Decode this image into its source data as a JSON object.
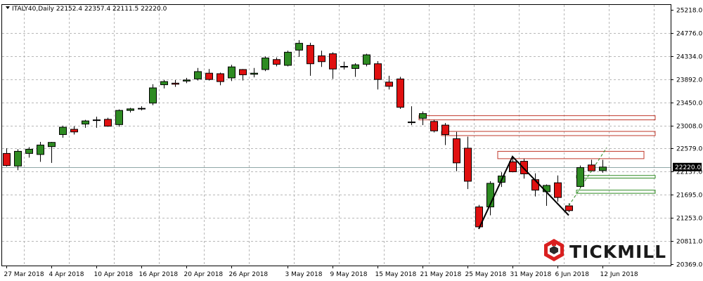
{
  "chart_data": {
    "type": "candlestick",
    "title": "ITALY40,Daily  22152.4 22357.4 22111.5 22220.0",
    "symbol": "ITALY40",
    "timeframe": "Daily",
    "ohlc_readout": {
      "open": "22152.4",
      "high": "22357.4",
      "low": "22111.5",
      "close": "22220.0"
    },
    "current_price": 22220.0,
    "current_price_label": "22220.0",
    "ylim": [
      20369.0,
      25218.0
    ],
    "y_ticks": [
      "25218.0",
      "24776.0",
      "24334.0",
      "23892.0",
      "23450.0",
      "23008.0",
      "22579.0",
      "22137.0",
      "21695.0",
      "21253.0",
      "20811.0",
      "20369.0"
    ],
    "x_ticks": [
      {
        "label": "27 Mar 2018",
        "index": 0
      },
      {
        "label": "4 Apr 2018",
        "index": 4
      },
      {
        "label": "10 Apr 2018",
        "index": 8
      },
      {
        "label": "16 Apr 2018",
        "index": 12
      },
      {
        "label": "20 Apr 2018",
        "index": 16
      },
      {
        "label": "26 Apr 2018",
        "index": 20
      },
      {
        "label": "3 May 2018",
        "index": 25
      },
      {
        "label": "9 May 2018",
        "index": 29
      },
      {
        "label": "15 May 2018",
        "index": 33
      },
      {
        "label": "21 May 2018",
        "index": 37
      },
      {
        "label": "25 May 2018",
        "index": 41
      },
      {
        "label": "31 May 2018",
        "index": 45
      },
      {
        "label": "6 Jun 2018",
        "index": 49
      },
      {
        "label": "12 Jun 2018",
        "index": 53
      }
    ],
    "up_color": "#2e8b22",
    "down_color": "#e01010",
    "candles": [
      {
        "o": 22480,
        "h": 22580,
        "l": 22230,
        "c": 22250
      },
      {
        "o": 22240,
        "h": 22560,
        "l": 22160,
        "c": 22520
      },
      {
        "o": 22480,
        "h": 22600,
        "l": 22400,
        "c": 22560
      },
      {
        "o": 22460,
        "h": 22700,
        "l": 22320,
        "c": 22640
      },
      {
        "o": 22610,
        "h": 22700,
        "l": 22300,
        "c": 22690
      },
      {
        "o": 22840,
        "h": 23010,
        "l": 22780,
        "c": 22980
      },
      {
        "o": 22940,
        "h": 23000,
        "l": 22840,
        "c": 22890
      },
      {
        "o": 23040,
        "h": 23120,
        "l": 22970,
        "c": 23100
      },
      {
        "o": 23120,
        "h": 23180,
        "l": 22970,
        "c": 23120
      },
      {
        "o": 23130,
        "h": 23160,
        "l": 22990,
        "c": 23000
      },
      {
        "o": 23030,
        "h": 23320,
        "l": 22990,
        "c": 23300
      },
      {
        "o": 23300,
        "h": 23350,
        "l": 23260,
        "c": 23330
      },
      {
        "o": 23330,
        "h": 23380,
        "l": 23300,
        "c": 23340
      },
      {
        "o": 23440,
        "h": 23800,
        "l": 23400,
        "c": 23730
      },
      {
        "o": 23790,
        "h": 23880,
        "l": 23720,
        "c": 23850
      },
      {
        "o": 23820,
        "h": 23880,
        "l": 23750,
        "c": 23800
      },
      {
        "o": 23860,
        "h": 23920,
        "l": 23820,
        "c": 23880
      },
      {
        "o": 23900,
        "h": 24110,
        "l": 23870,
        "c": 24040
      },
      {
        "o": 24010,
        "h": 24090,
        "l": 23870,
        "c": 23890
      },
      {
        "o": 24000,
        "h": 24020,
        "l": 23780,
        "c": 23850
      },
      {
        "o": 23920,
        "h": 24170,
        "l": 23860,
        "c": 24130
      },
      {
        "o": 24080,
        "h": 24090,
        "l": 23870,
        "c": 23980
      },
      {
        "o": 23990,
        "h": 24110,
        "l": 23930,
        "c": 24010
      },
      {
        "o": 24080,
        "h": 24330,
        "l": 24050,
        "c": 24300
      },
      {
        "o": 24270,
        "h": 24310,
        "l": 24140,
        "c": 24180
      },
      {
        "o": 24160,
        "h": 24440,
        "l": 24140,
        "c": 24410
      },
      {
        "o": 24450,
        "h": 24640,
        "l": 24320,
        "c": 24580
      },
      {
        "o": 24540,
        "h": 24590,
        "l": 23960,
        "c": 24190
      },
      {
        "o": 24340,
        "h": 24440,
        "l": 24130,
        "c": 24230
      },
      {
        "o": 24380,
        "h": 24410,
        "l": 23900,
        "c": 24090
      },
      {
        "o": 24140,
        "h": 24230,
        "l": 24080,
        "c": 24140
      },
      {
        "o": 24100,
        "h": 24200,
        "l": 23940,
        "c": 24170
      },
      {
        "o": 24180,
        "h": 24380,
        "l": 24140,
        "c": 24360
      },
      {
        "o": 24190,
        "h": 24240,
        "l": 23700,
        "c": 23890
      },
      {
        "o": 23840,
        "h": 23960,
        "l": 23700,
        "c": 23760
      },
      {
        "o": 23900,
        "h": 23940,
        "l": 23330,
        "c": 23360
      },
      {
        "o": 23080,
        "h": 23380,
        "l": 23020,
        "c": 23070
      },
      {
        "o": 23150,
        "h": 23280,
        "l": 23020,
        "c": 23240
      },
      {
        "o": 23090,
        "h": 23120,
        "l": 22880,
        "c": 22910
      },
      {
        "o": 23020,
        "h": 23060,
        "l": 22640,
        "c": 22840
      },
      {
        "o": 22760,
        "h": 22890,
        "l": 22140,
        "c": 22300
      },
      {
        "o": 22580,
        "h": 22800,
        "l": 21800,
        "c": 21950
      },
      {
        "o": 21460,
        "h": 21500,
        "l": 21040,
        "c": 21080
      },
      {
        "o": 21460,
        "h": 21950,
        "l": 21300,
        "c": 21910
      },
      {
        "o": 21930,
        "h": 22120,
        "l": 21840,
        "c": 22050
      },
      {
        "o": 22320,
        "h": 22420,
        "l": 22120,
        "c": 22130
      },
      {
        "o": 22330,
        "h": 22380,
        "l": 22000,
        "c": 22090
      },
      {
        "o": 21980,
        "h": 22100,
        "l": 21660,
        "c": 21780
      },
      {
        "o": 21750,
        "h": 21890,
        "l": 21480,
        "c": 21870
      },
      {
        "o": 21920,
        "h": 22060,
        "l": 21560,
        "c": 21640
      },
      {
        "o": 21480,
        "h": 21530,
        "l": 21360,
        "c": 21390
      },
      {
        "o": 21850,
        "h": 22250,
        "l": 21830,
        "c": 22210
      },
      {
        "o": 22260,
        "h": 22360,
        "l": 22130,
        "c": 22150
      },
      {
        "o": 22152.4,
        "h": 22357.4,
        "l": 22111.5,
        "c": 22220.0
      }
    ],
    "resistance_zones": [
      {
        "start_index": 37,
        "end_index": 65,
        "y_top": 23200,
        "y_bottom": 23120
      },
      {
        "start_index": 39,
        "end_index": 65,
        "y_top": 22900,
        "y_bottom": 22820
      },
      {
        "start_index": 44,
        "end_index": 57,
        "y_top": 22520,
        "y_bottom": 22380
      }
    ],
    "support_zones": [
      {
        "start_index": 51,
        "end_index": 65,
        "y_top": 22060,
        "y_bottom": 22010
      },
      {
        "start_index": 51,
        "end_index": 65,
        "y_top": 21780,
        "y_bottom": 21720
      }
    ],
    "zigzag": [
      {
        "index": 42,
        "value": 21040
      },
      {
        "index": 45,
        "value": 22420
      },
      {
        "index": 50,
        "value": 21300
      }
    ],
    "projection": [
      {
        "index": 50,
        "value": 21480
      },
      {
        "index": 53,
        "value": 22590
      }
    ]
  },
  "branding": {
    "logo_text": "TICKMILL",
    "logo_icon": "tickmill-hexagon-icon"
  }
}
